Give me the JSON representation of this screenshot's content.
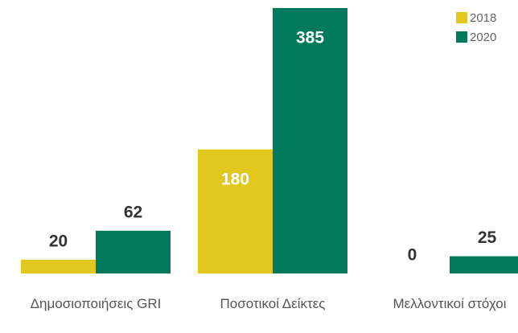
{
  "chart_data": {
    "type": "bar",
    "categories": [
      "Δημοσιοποιήσεις GRI",
      "Ποσοτικοί Δείκτες",
      "Μελλοντικοί στόχοι"
    ],
    "series": [
      {
        "name": "2018",
        "color": "#e2c81e",
        "values": [
          20,
          180,
          0
        ]
      },
      {
        "name": "2020",
        "color": "#007a5b",
        "values": [
          62,
          385,
          25
        ]
      }
    ],
    "ylim": [
      0,
      385
    ],
    "legend": "top-right"
  }
}
